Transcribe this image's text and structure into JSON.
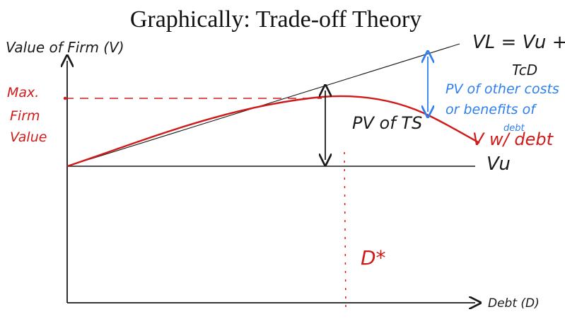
{
  "title": "Graphically: Trade-off Theory",
  "y_axis_label": "Value of Firm (V)",
  "x_axis_label": "Debt (D)",
  "levered_line_label_line1": "VL = Vu +",
  "levered_line_label_line2": "TcD",
  "unlevered_label": "Vu",
  "pv_ts_label": "PV of TS",
  "pv_costs_label_line1": "PV of other costs",
  "pv_costs_label_line2": "or benefits of",
  "pv_costs_label_line3": "debt",
  "v_with_debt_label": "V w/ debt",
  "max_value_label_line1": "Max.",
  "max_value_label_line2": "Firm",
  "max_value_label_line3": "Value",
  "optimal_debt_label": "D*",
  "colors": {
    "black": "#1a1a1a",
    "red": "#d01a1a",
    "blue": "#2d7ff0"
  }
}
